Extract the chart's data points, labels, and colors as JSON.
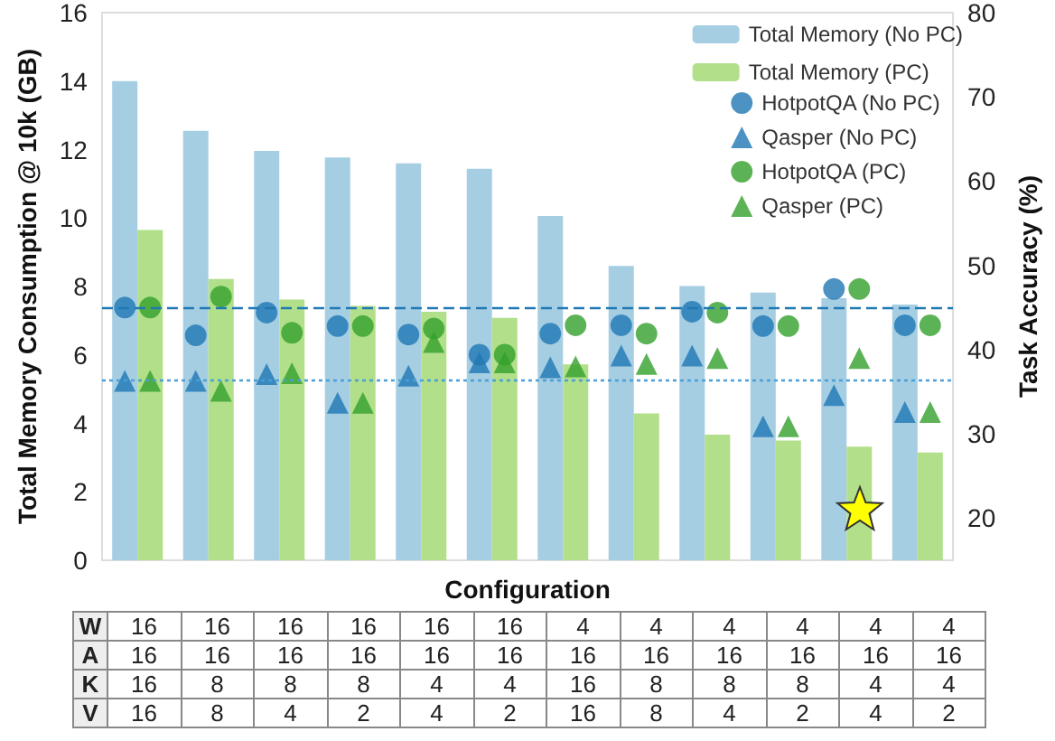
{
  "chart_data": {
    "type": "bar",
    "xlabel": "Configuration",
    "ylabel": "Total Memory Consumption @ 10k (GB)",
    "y2label": "Task Accuracy (%)",
    "categories": [
      "16\n16\n16\n16",
      "16\n16\n8\n8",
      "16\n16\n8\n4",
      "16\n16\n8\n2",
      "16\n16\n4\n4",
      "16\n16\n4\n2",
      "4\n16\n16\n16",
      "4\n16\n8\n8",
      "4\n16\n8\n4",
      "4\n16\n8\n2",
      "4\n16\n4\n4",
      "4\n16\n4\n2"
    ],
    "annotations": [
      "W",
      "A",
      "K",
      "V"
    ],
    "series": [
      {
        "name": "Total Memory (No PC)",
        "color": "#a6cee3",
        "values": [
          14.0,
          12.55,
          11.96,
          11.77,
          11.6,
          11.44,
          10.06,
          8.6,
          8.01,
          7.82,
          7.66,
          7.47
        ]
      },
      {
        "name": "Total Memory (PC)",
        "color": "#b2df8a",
        "values": [
          9.65,
          8.22,
          7.62,
          7.43,
          7.26,
          7.08,
          5.72,
          4.29,
          3.67,
          3.5,
          3.32,
          3.15
        ]
      },
      {
        "name": "HotpotQA (No PC)",
        "type": "scatter",
        "axis": "y2",
        "marker": "circle",
        "color": "#1f78b4",
        "values": [
          45.0,
          41.7,
          44.4,
          42.8,
          41.8,
          39.4,
          41.9,
          42.9,
          44.5,
          42.8,
          47.2,
          42.9
        ]
      },
      {
        "name": "Qasper (No PC)",
        "type": "scatter",
        "axis": "y2",
        "marker": "triangle",
        "color": "#1f78b4",
        "values": [
          36.3,
          36.3,
          37.1,
          33.7,
          36.9,
          38.5,
          37.9,
          39.3,
          39.3,
          30.9,
          34.6,
          32.6
        ]
      },
      {
        "name": "HotpotQA (PC)",
        "type": "scatter",
        "axis": "y2",
        "marker": "circle",
        "color": "#33a02c",
        "values": [
          45.0,
          46.3,
          42.0,
          42.8,
          42.5,
          39.4,
          42.9,
          41.9,
          44.4,
          42.8,
          47.2,
          42.9
        ]
      },
      {
        "name": "Qasper (PC)",
        "type": "scatter",
        "axis": "y2",
        "marker": "triangle",
        "color": "#33a02c",
        "values": [
          36.3,
          35.1,
          37.2,
          33.7,
          40.9,
          38.5,
          38.0,
          38.3,
          39.0,
          30.9,
          39.0,
          32.6
        ]
      }
    ],
    "ylim": [
      0,
      16
    ],
    "yticks": [
      0,
      2,
      4,
      6,
      8,
      10,
      12,
      14,
      16
    ],
    "y2lim": [
      15,
      80
    ],
    "y2ticks": [
      20,
      30,
      40,
      50,
      60,
      70,
      80
    ],
    "ref_lines": [
      {
        "axis": "y2",
        "value": 45.0,
        "line_style": "dashed",
        "color": "#1f78b4"
      },
      {
        "axis": "y2",
        "value": 36.4,
        "line_style": "dotted",
        "color": "#4a9fd6"
      }
    ],
    "grid": false,
    "legend": "top right"
  }
}
